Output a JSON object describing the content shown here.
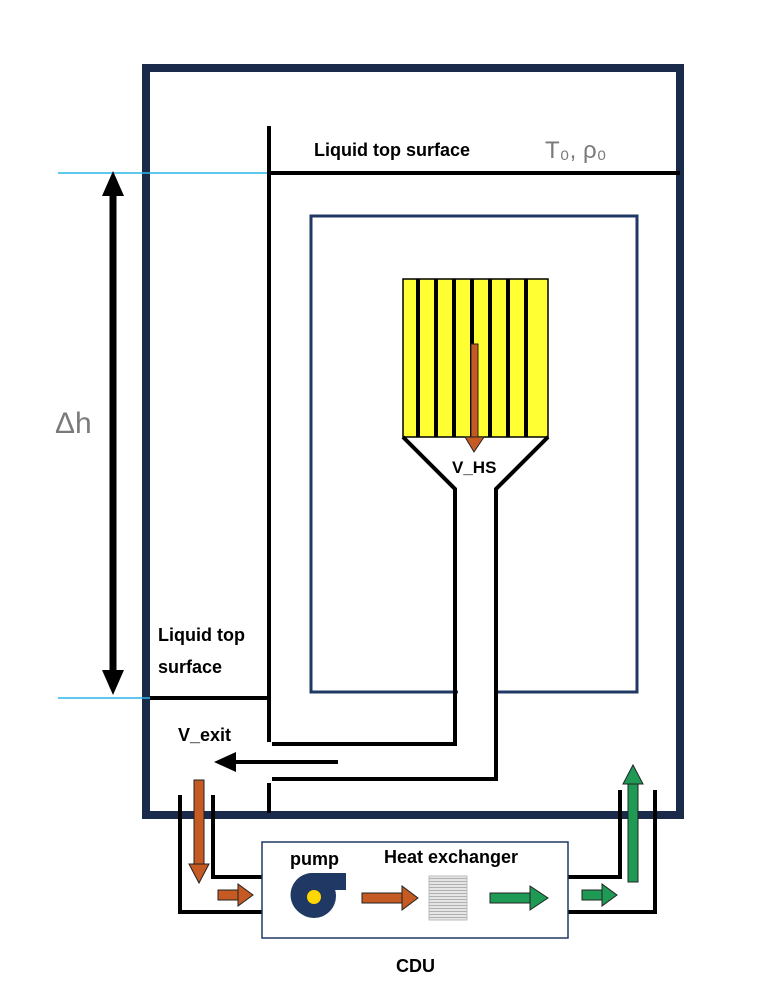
{
  "labels": {
    "liquid_top_surface": "Liquid top surface",
    "t0_rho0": "T₀, ρ₀",
    "delta_h": "Δh",
    "v_hs": "V_HS",
    "liquid_top_line1": "Liquid top",
    "liquid_top_line2": "surface",
    "v_exit": "V_exit",
    "pump": "pump",
    "heat_exchanger": "Heat exchanger",
    "cdu": "CDU"
  },
  "colors": {
    "tank_border": "#1a2a4a",
    "inner_box": "#1f3864",
    "fin_fill": "#ffff33",
    "hot_arrow": "#c55a22",
    "cold_arrow": "#1e9a55",
    "level_line": "#29b6e8",
    "pump_body": "#1f3864",
    "pump_center": "#ffd700"
  },
  "icons": {
    "pump": "centrifugal-pump-icon",
    "heat_exchanger": "heat-exchanger-icon"
  }
}
